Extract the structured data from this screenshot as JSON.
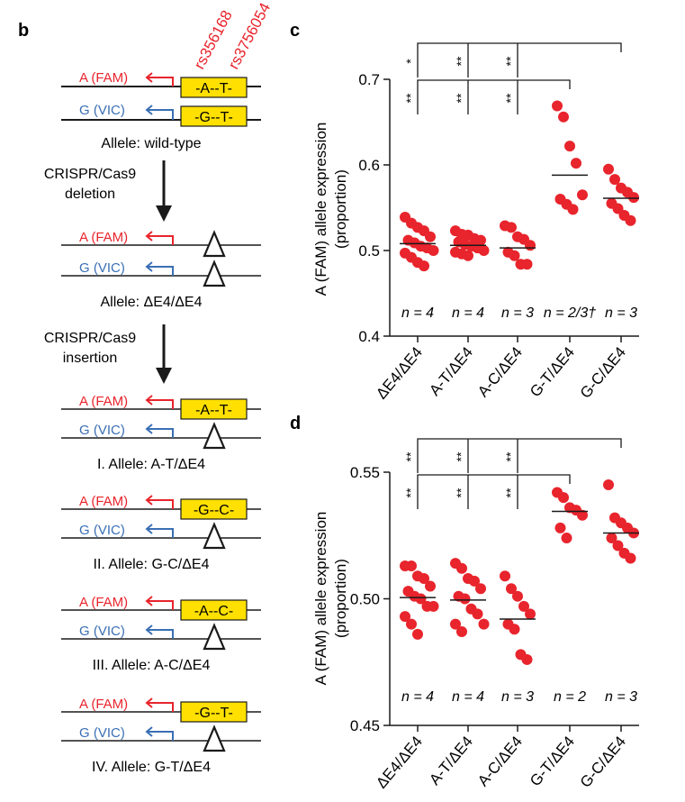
{
  "panels": {
    "b": "b",
    "c": "c",
    "d": "d"
  },
  "schematic": {
    "snp1": "rs356168",
    "snp2": "rs3756054",
    "fam": "A (FAM)",
    "vic": "G (VIC)",
    "wt_top": "-A--T-",
    "wt_bot": "-G--T-",
    "wt_label": "Allele: wild-type",
    "step1_line1": "CRISPR/Cas9",
    "step1_line2": "deletion",
    "del_label": "Allele: ΔE4/ΔE4",
    "step2_line1": "CRISPR/Cas9",
    "step2_line2": "insertion",
    "alleles": [
      {
        "box": "-A--T-",
        "label": "I. Allele: A-T/ΔE4"
      },
      {
        "box": "-G--C-",
        "label": "II. Allele: G-C/ΔE4"
      },
      {
        "box": "-A--C-",
        "label": "III. Allele: A-C/ΔE4"
      },
      {
        "box": "-G--T-",
        "label": "IV. Allele: G-T/ΔE4"
      }
    ]
  },
  "chart_data": [
    {
      "type": "scatter",
      "panel": "c",
      "ylabel": "A (FAM) allele expression (proportion)",
      "ylabel_line1": "A (FAM) allele expression",
      "ylabel_line2": "(proportion)",
      "ylim": [
        0.4,
        0.7
      ],
      "yticks": [
        "0.4",
        "0.5",
        "0.6",
        "0.7"
      ],
      "ytick_values": [
        0.4,
        0.5,
        0.6,
        0.7
      ],
      "categories": [
        "ΔE4/ΔE4",
        "A-T/ΔE4",
        "A-C/ΔE4",
        "G-T/ΔE4",
        "G-C/ΔE4"
      ],
      "n_labels": [
        "n = 4",
        "n = 4",
        "n = 3",
        "n = 2/3†",
        "n = 3"
      ],
      "means": [
        0.508,
        0.506,
        0.503,
        0.588,
        0.561
      ],
      "points": [
        [
          0.539,
          0.532,
          0.527,
          0.523,
          0.516,
          0.512,
          0.509,
          0.505,
          0.503,
          0.5,
          0.497,
          0.492,
          0.486,
          0.482
        ],
        [
          0.523,
          0.519,
          0.518,
          0.514,
          0.512,
          0.51,
          0.507,
          0.505,
          0.503,
          0.5,
          0.498,
          0.496,
          0.494
        ],
        [
          0.529,
          0.527,
          0.516,
          0.513,
          0.506,
          0.498,
          0.494,
          0.484,
          0.484
        ],
        [
          0.669,
          0.656,
          0.622,
          0.602,
          0.565,
          0.56,
          0.554,
          0.548
        ],
        [
          0.595,
          0.583,
          0.573,
          0.568,
          0.562,
          0.555,
          0.549,
          0.541,
          0.535
        ]
      ],
      "sig_top": [
        "*",
        "**",
        "**"
      ],
      "sig_bottom": [
        "**",
        "**",
        "**"
      ]
    },
    {
      "type": "scatter",
      "panel": "d",
      "ylabel": "A (FAM) allele expression (proportion)",
      "ylabel_line1": "A (FAM) allele expression",
      "ylabel_line2": "(proportion)",
      "ylim": [
        0.45,
        0.55
      ],
      "yticks": [
        "0.45",
        "0.50",
        "0.55"
      ],
      "ytick_values": [
        0.45,
        0.5,
        0.55
      ],
      "categories": [
        "ΔE4/ΔE4",
        "A-T/ΔE4",
        "A-C/ΔE4",
        "G-T/ΔE4",
        "G-C/ΔE4"
      ],
      "n_labels": [
        "n = 4",
        "n = 4",
        "n = 3",
        "n = 2",
        "n = 3"
      ],
      "means": [
        0.5005,
        0.4995,
        0.492,
        0.5345,
        0.526
      ],
      "points": [
        [
          0.513,
          0.513,
          0.509,
          0.508,
          0.505,
          0.503,
          0.501,
          0.5,
          0.497,
          0.497,
          0.493,
          0.49,
          0.486
        ],
        [
          0.514,
          0.512,
          0.508,
          0.507,
          0.504,
          0.501,
          0.5,
          0.496,
          0.494,
          0.49,
          0.49,
          0.487
        ],
        [
          0.509,
          0.504,
          0.501,
          0.497,
          0.494,
          0.49,
          0.488,
          0.478,
          0.476
        ],
        [
          0.542,
          0.54,
          0.536,
          0.535,
          0.533,
          0.528,
          0.524
        ],
        [
          0.545,
          0.532,
          0.53,
          0.528,
          0.526,
          0.524,
          0.521,
          0.518,
          0.516
        ]
      ],
      "sig_top": [
        "**",
        "**",
        "**"
      ],
      "sig_bottom": [
        "**",
        "**",
        "**"
      ]
    }
  ]
}
